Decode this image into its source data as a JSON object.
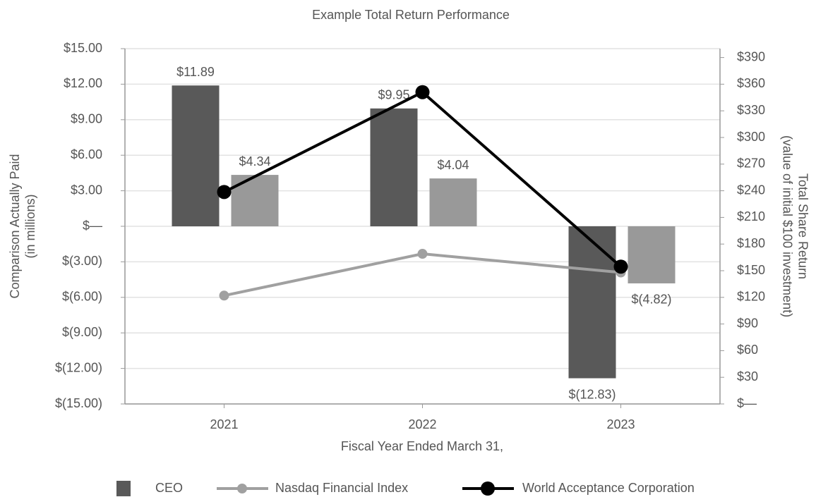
{
  "chart_data": {
    "type": "bar",
    "title": "Example Total Return Performance",
    "xlabel": "Fiscal Year Ended March 31,",
    "ylabel": [
      "Comparison Actually Paid",
      "(in millions)"
    ],
    "y2label": [
      "Total Share Return",
      "(value of initial $100 investment)"
    ],
    "categories": [
      "2021",
      "2022",
      "2023"
    ],
    "ylim": [
      -15,
      15
    ],
    "yticks": [
      {
        "value": -15,
        "label": "$(15.00)"
      },
      {
        "value": -12,
        "label": "$(12.00)"
      },
      {
        "value": -9,
        "label": "$(9.00)"
      },
      {
        "value": -6,
        "label": "$(6.00)"
      },
      {
        "value": -3,
        "label": "$(3.00)"
      },
      {
        "value": 0,
        "label": "$—"
      },
      {
        "value": 3,
        "label": "$3.00"
      },
      {
        "value": 6,
        "label": "$6.00"
      },
      {
        "value": 9,
        "label": "$9.00"
      },
      {
        "value": 12,
        "label": "$12.00"
      },
      {
        "value": 15,
        "label": "$15.00"
      }
    ],
    "y2lim": [
      0,
      400
    ],
    "y2ticks": [
      {
        "value": 0,
        "label": "$—"
      },
      {
        "value": 30,
        "label": "$30"
      },
      {
        "value": 60,
        "label": "$60"
      },
      {
        "value": 90,
        "label": "$90"
      },
      {
        "value": 120,
        "label": "$120"
      },
      {
        "value": 150,
        "label": "$150"
      },
      {
        "value": 180,
        "label": "$180"
      },
      {
        "value": 210,
        "label": "$210"
      },
      {
        "value": 240,
        "label": "$240"
      },
      {
        "value": 270,
        "label": "$270"
      },
      {
        "value": 300,
        "label": "$300"
      },
      {
        "value": 330,
        "label": "$330"
      },
      {
        "value": 360,
        "label": "$360"
      },
      {
        "value": 390,
        "label": "$390"
      }
    ],
    "grid": true,
    "legend": "bottom",
    "series": [
      {
        "name": "CEO",
        "type": "bar",
        "color": "#595959",
        "values": [
          11.89,
          9.95,
          -12.83
        ],
        "value_labels": [
          "$11.89",
          "$9.95",
          "$(12.83)"
        ]
      },
      {
        "type": "bar",
        "color": "#999999",
        "values": [
          4.34,
          4.04,
          -4.82
        ],
        "value_labels": [
          "$4.34",
          "$4.04",
          "$(4.82)"
        ]
      },
      {
        "name": "Nasdaq Financial Index",
        "type": "line",
        "axis": "y2",
        "color": "#a0a0a0",
        "values": [
          122,
          169,
          148
        ]
      },
      {
        "name": "World Acceptance Corporation",
        "type": "line",
        "axis": "y2",
        "color": "#000000",
        "values": [
          238.6,
          351,
          154.6
        ]
      }
    ]
  }
}
